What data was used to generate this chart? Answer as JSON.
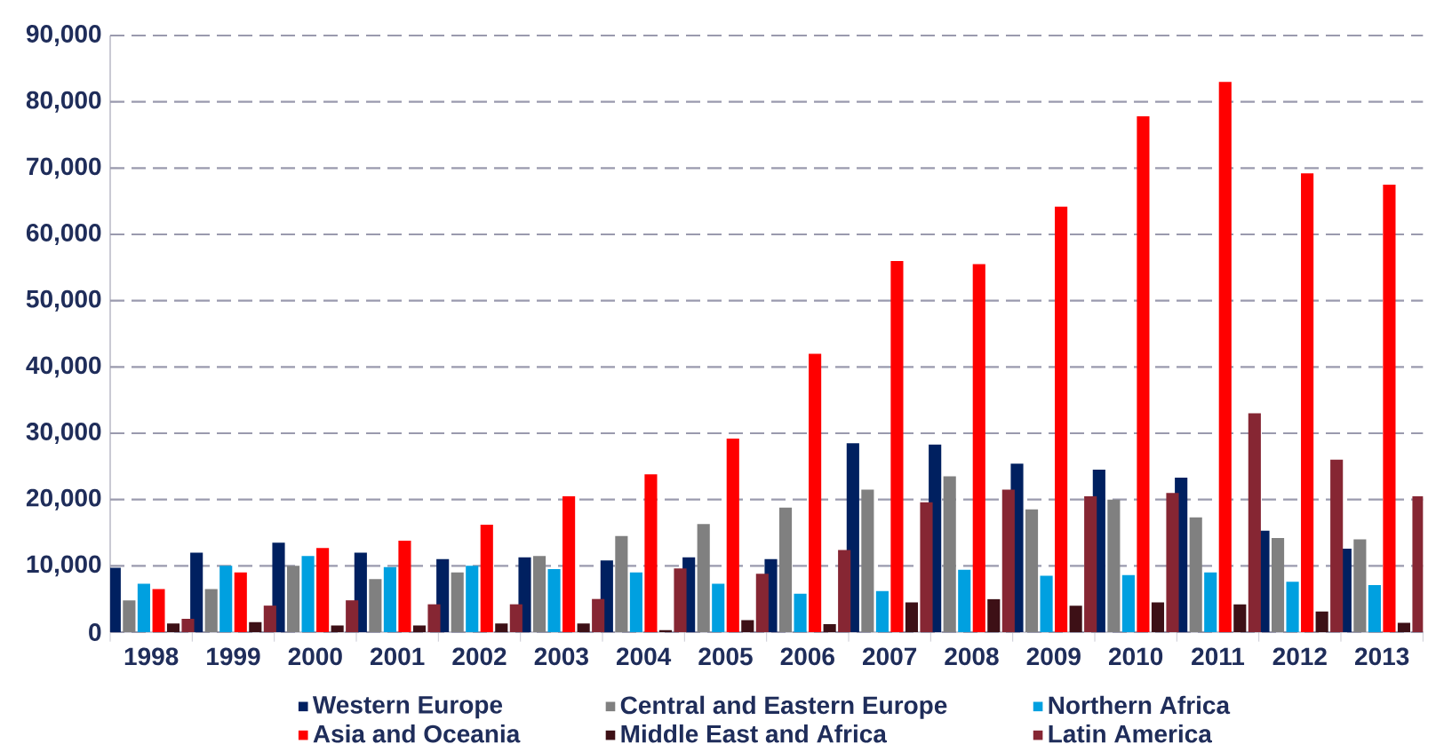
{
  "chart_data": {
    "type": "bar",
    "categories": [
      "1998",
      "1999",
      "2000",
      "2001",
      "2002",
      "2003",
      "2004",
      "2005",
      "2006",
      "2007",
      "2008",
      "2009",
      "2010",
      "2011",
      "2012",
      "2013"
    ],
    "series": [
      {
        "name": "Western Europe",
        "color": "#002060",
        "values": [
          9700,
          12000,
          13500,
          12000,
          11000,
          11300,
          10800,
          11300,
          11000,
          28500,
          28300,
          25400,
          24500,
          23300,
          15300,
          12600
        ]
      },
      {
        "name": "Central and Eastern Europe",
        "color": "#808080",
        "values": [
          4800,
          6500,
          10000,
          8000,
          9000,
          11500,
          14500,
          16300,
          18800,
          21500,
          23500,
          18500,
          20000,
          17300,
          14200,
          14000
        ]
      },
      {
        "name": "Northern Africa",
        "color": "#00a0e0",
        "values": [
          7300,
          10000,
          11500,
          9800,
          10000,
          9500,
          9000,
          7300,
          5800,
          6200,
          9400,
          8500,
          8600,
          9000,
          7600,
          7100
        ]
      },
      {
        "name": "Asia and Oceania",
        "color": "#ff0000",
        "values": [
          6500,
          9000,
          12700,
          13800,
          16200,
          20500,
          23800,
          29200,
          42000,
          56000,
          55500,
          64200,
          77800,
          83000,
          69200,
          67500
        ]
      },
      {
        "name": "Middle East and Africa",
        "color": "#3d1016",
        "values": [
          1300,
          1500,
          1000,
          1000,
          1300,
          1300,
          300,
          1800,
          1200,
          4500,
          5000,
          4000,
          4500,
          4200,
          3100,
          1400
        ]
      },
      {
        "name": "Latin America",
        "color": "#862633",
        "values": [
          2000,
          4000,
          4800,
          4200,
          4200,
          5000,
          9600,
          8800,
          12400,
          19600,
          21500,
          20500,
          21000,
          33000,
          26000,
          20500
        ]
      }
    ],
    "ylim": [
      0,
      90000
    ],
    "yticks": [
      {
        "value": 0,
        "label": "0"
      },
      {
        "value": 10000,
        "label": "10,000"
      },
      {
        "value": 20000,
        "label": "20,000"
      },
      {
        "value": 30000,
        "label": "30,000"
      },
      {
        "value": 40000,
        "label": "40,000"
      },
      {
        "value": 50000,
        "label": "50,000"
      },
      {
        "value": 60000,
        "label": "60,000"
      },
      {
        "value": 70000,
        "label": "70,000"
      },
      {
        "value": 80000,
        "label": "80,000"
      },
      {
        "value": 90000,
        "label": "90,000"
      }
    ],
    "grid": "y",
    "legend": "bottom"
  }
}
